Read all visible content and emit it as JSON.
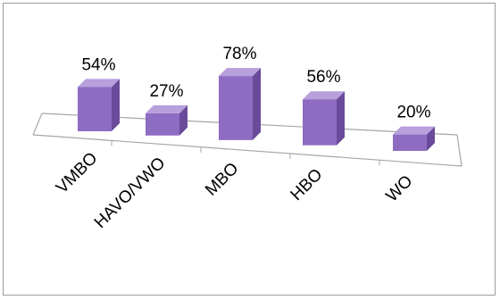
{
  "chart_data": {
    "type": "bar",
    "title": "",
    "xlabel": "",
    "ylabel": "",
    "categories": [
      "VMBO",
      "HAVO/VWO",
      "MBO",
      "HBO",
      "WO"
    ],
    "values": [
      54,
      27,
      78,
      56,
      20
    ],
    "value_labels": [
      "54%",
      "27%",
      "78%",
      "56%",
      "20%"
    ],
    "unit": "%",
    "ylim": [
      0,
      100
    ],
    "grid": false,
    "legend": "none",
    "style": "3d-column",
    "colors": {
      "bar_front": "#8e6cc2",
      "bar_side": "#6a4a9a",
      "bar_top": "#b7a0dc",
      "floor_line": "#a6a6a6"
    }
  }
}
